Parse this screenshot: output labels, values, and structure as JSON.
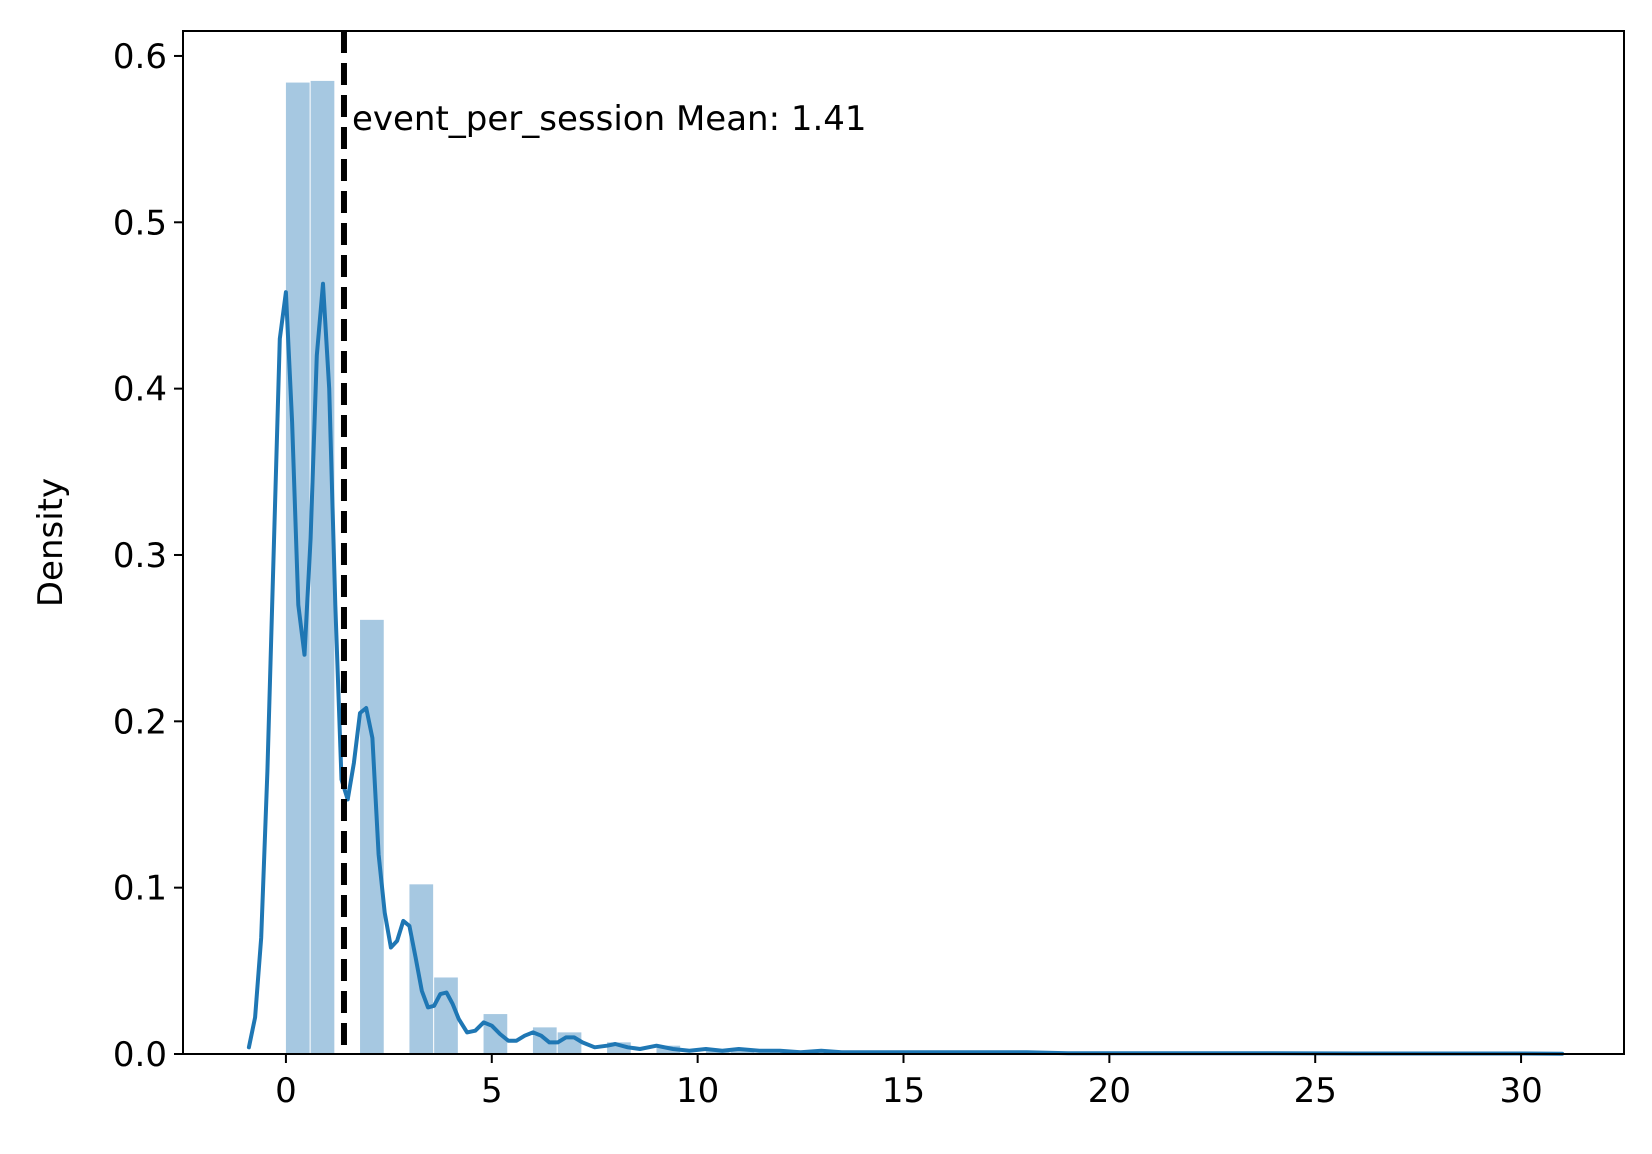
{
  "chart_data": {
    "type": "bar",
    "title": "",
    "xlabel": "",
    "ylabel": "Density",
    "xlim": [
      -2.5,
      32.5
    ],
    "ylim": [
      0,
      0.615
    ],
    "xticks": [
      0,
      5,
      10,
      15,
      20,
      25,
      30
    ],
    "yticks": [
      0.0,
      0.1,
      0.2,
      0.3,
      0.4,
      0.5,
      0.6
    ],
    "grid": false,
    "histogram": {
      "color": "#a6c8e1",
      "bins": [
        {
          "x0": 0.0,
          "x1": 0.6,
          "value": 0.584
        },
        {
          "x0": 0.6,
          "x1": 1.2,
          "value": 0.585
        },
        {
          "x0": 1.8,
          "x1": 2.4,
          "value": 0.261
        },
        {
          "x0": 3.0,
          "x1": 3.6,
          "value": 0.102
        },
        {
          "x0": 3.6,
          "x1": 4.2,
          "value": 0.046
        },
        {
          "x0": 4.8,
          "x1": 5.4,
          "value": 0.024
        },
        {
          "x0": 6.0,
          "x1": 6.6,
          "value": 0.016
        },
        {
          "x0": 6.6,
          "x1": 7.2,
          "value": 0.013
        },
        {
          "x0": 7.8,
          "x1": 8.4,
          "value": 0.007
        },
        {
          "x0": 9.0,
          "x1": 9.6,
          "value": 0.005
        },
        {
          "x0": 10.2,
          "x1": 10.8,
          "value": 0.003
        },
        {
          "x0": 10.8,
          "x1": 11.4,
          "value": 0.002
        },
        {
          "x0": 12.0,
          "x1": 12.6,
          "value": 0.002
        },
        {
          "x0": 13.2,
          "x1": 13.8,
          "value": 0.001
        },
        {
          "x0": 15.0,
          "x1": 15.6,
          "value": 0.001
        },
        {
          "x0": 18.0,
          "x1": 18.6,
          "value": 0.001
        },
        {
          "x0": 24.0,
          "x1": 24.6,
          "value": 0.0005
        },
        {
          "x0": 30.6,
          "x1": 31.2,
          "value": 0.0005
        }
      ]
    },
    "kde": {
      "color": "#1f77b4",
      "points": [
        [
          -0.9,
          0.004
        ],
        [
          -0.75,
          0.022
        ],
        [
          -0.6,
          0.07
        ],
        [
          -0.45,
          0.17
        ],
        [
          -0.3,
          0.3
        ],
        [
          -0.15,
          0.43
        ],
        [
          0.0,
          0.458
        ],
        [
          0.15,
          0.38
        ],
        [
          0.3,
          0.27
        ],
        [
          0.45,
          0.24
        ],
        [
          0.6,
          0.31
        ],
        [
          0.75,
          0.42
        ],
        [
          0.9,
          0.463
        ],
        [
          1.05,
          0.4
        ],
        [
          1.2,
          0.27
        ],
        [
          1.35,
          0.165
        ],
        [
          1.5,
          0.153
        ],
        [
          1.65,
          0.175
        ],
        [
          1.8,
          0.205
        ],
        [
          1.95,
          0.208
        ],
        [
          2.1,
          0.19
        ],
        [
          2.25,
          0.12
        ],
        [
          2.4,
          0.085
        ],
        [
          2.55,
          0.064
        ],
        [
          2.7,
          0.068
        ],
        [
          2.85,
          0.08
        ],
        [
          3.0,
          0.077
        ],
        [
          3.15,
          0.058
        ],
        [
          3.3,
          0.038
        ],
        [
          3.45,
          0.028
        ],
        [
          3.6,
          0.029
        ],
        [
          3.75,
          0.036
        ],
        [
          3.9,
          0.037
        ],
        [
          4.05,
          0.03
        ],
        [
          4.2,
          0.021
        ],
        [
          4.4,
          0.013
        ],
        [
          4.6,
          0.014
        ],
        [
          4.8,
          0.019
        ],
        [
          5.0,
          0.017
        ],
        [
          5.2,
          0.012
        ],
        [
          5.4,
          0.008
        ],
        [
          5.6,
          0.008
        ],
        [
          5.8,
          0.011
        ],
        [
          6.0,
          0.013
        ],
        [
          6.2,
          0.011
        ],
        [
          6.4,
          0.007
        ],
        [
          6.6,
          0.007
        ],
        [
          6.8,
          0.01
        ],
        [
          7.0,
          0.01
        ],
        [
          7.2,
          0.007
        ],
        [
          7.5,
          0.004
        ],
        [
          7.8,
          0.005
        ],
        [
          8.0,
          0.006
        ],
        [
          8.3,
          0.004
        ],
        [
          8.6,
          0.003
        ],
        [
          9.0,
          0.005
        ],
        [
          9.4,
          0.003
        ],
        [
          9.8,
          0.002
        ],
        [
          10.2,
          0.003
        ],
        [
          10.6,
          0.002
        ],
        [
          11.0,
          0.003
        ],
        [
          11.5,
          0.002
        ],
        [
          12.0,
          0.002
        ],
        [
          12.5,
          0.001
        ],
        [
          13.0,
          0.002
        ],
        [
          13.5,
          0.001
        ],
        [
          14.0,
          0.001
        ],
        [
          15.0,
          0.001
        ],
        [
          16.0,
          0.001
        ],
        [
          17.0,
          0.001
        ],
        [
          18.0,
          0.001
        ],
        [
          19.0,
          0.0005
        ],
        [
          20.0,
          0.0005
        ],
        [
          22.0,
          0.0005
        ],
        [
          24.0,
          0.0005
        ],
        [
          26.0,
          0.0003
        ],
        [
          28.0,
          0.0003
        ],
        [
          30.0,
          0.0003
        ],
        [
          31.0,
          0.0002
        ]
      ]
    },
    "mean_line": {
      "x": 1.41,
      "style": "dashed",
      "color": "#000000",
      "label": "event_per_session Mean: 1.41"
    }
  }
}
